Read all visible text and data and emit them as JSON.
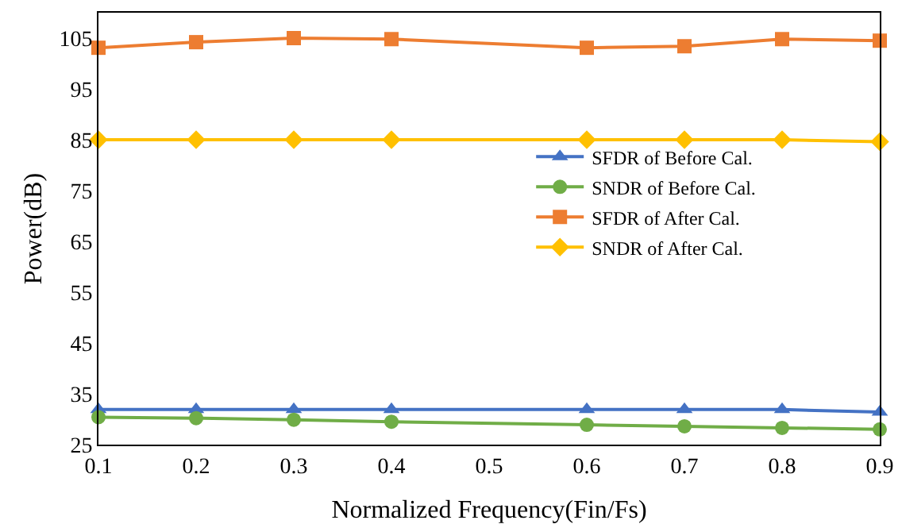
{
  "chart_data": {
    "type": "line",
    "xlabel": "Normalized Frequency(Fin/Fs)",
    "ylabel": "Power(dB)",
    "x": [
      0.1,
      0.2,
      0.3,
      0.4,
      0.6,
      0.7,
      0.8,
      0.9
    ],
    "xlim": [
      0.1,
      0.9
    ],
    "xticks": [
      0.1,
      0.2,
      0.3,
      0.4,
      0.5,
      0.6,
      0.7,
      0.8,
      0.9
    ],
    "ylim": [
      25,
      110
    ],
    "yticks": [
      25,
      35,
      45,
      55,
      65,
      75,
      85,
      95,
      105
    ],
    "grid": false,
    "legend": "right",
    "series": [
      {
        "name": "SFDR of Before Cal.",
        "color": "#4472c4",
        "marker": "triangle",
        "values": [
          31.9,
          31.9,
          31.9,
          31.9,
          31.9,
          31.9,
          31.9,
          31.4
        ]
      },
      {
        "name": "SNDR of Before Cal.",
        "color": "#70ad47",
        "marker": "circle",
        "values": [
          30.4,
          30.2,
          29.9,
          29.5,
          28.9,
          28.6,
          28.3,
          28.0
        ]
      },
      {
        "name": "SFDR of After Cal.",
        "color": "#ed7d31",
        "marker": "square",
        "values": [
          103.1,
          104.2,
          105,
          104.8,
          103.1,
          103.4,
          104.8,
          104.5
        ]
      },
      {
        "name": "SNDR of After Cal.",
        "color": "#ffc000",
        "marker": "diamond",
        "values": [
          85,
          85,
          85,
          85,
          85,
          85,
          85,
          84.6
        ]
      }
    ]
  }
}
